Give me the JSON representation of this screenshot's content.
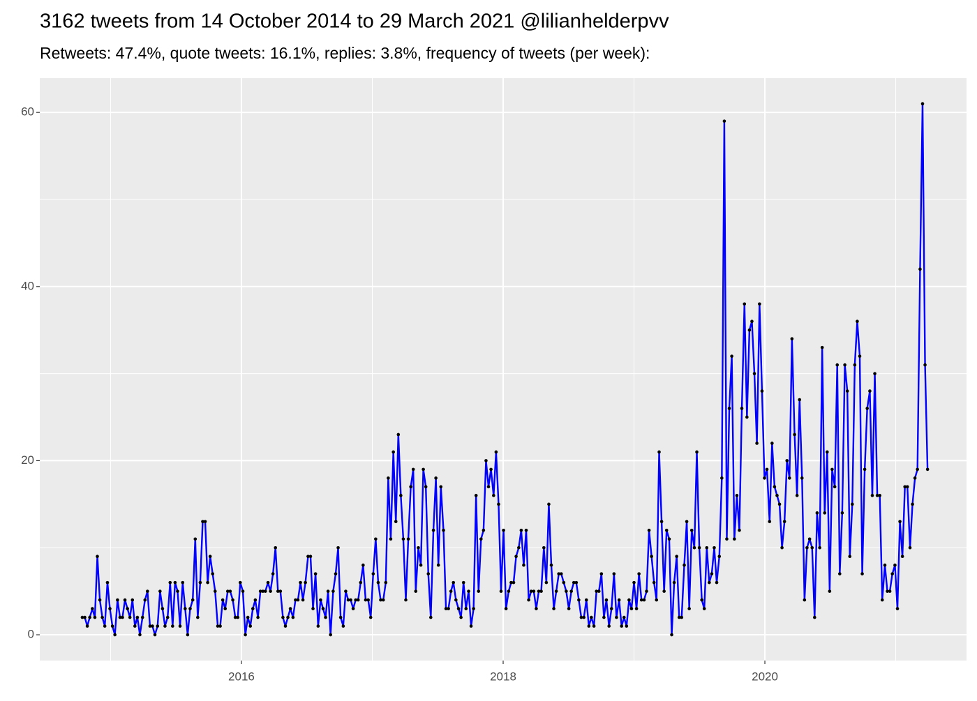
{
  "chart_data": {
    "type": "line",
    "title": "3162 tweets from 14 October 2014 to 29 March 2021 @lilianhelderpvv",
    "subtitle": "Retweets: 47.4%, quote tweets: 16.1%, replies: 3.8%, frequency of tweets (per week):",
    "x": [
      2014.784,
      2014.803,
      2014.822,
      2014.841,
      2014.861,
      2014.88,
      2014.899,
      2014.918,
      2014.937,
      2014.956,
      2014.976,
      2014.995,
      2015.014,
      2015.033,
      2015.053,
      2015.072,
      2015.091,
      2015.11,
      2015.129,
      2015.148,
      2015.167,
      2015.186,
      2015.205,
      2015.224,
      2015.244,
      2015.263,
      2015.282,
      2015.301,
      2015.32,
      2015.339,
      2015.359,
      2015.378,
      2015.397,
      2015.416,
      2015.436,
      2015.455,
      2015.474,
      2015.493,
      2015.512,
      2015.531,
      2015.551,
      2015.57,
      2015.589,
      2015.608,
      2015.628,
      2015.647,
      2015.666,
      2015.685,
      2015.704,
      2015.723,
      2015.742,
      2015.761,
      2015.78,
      2015.799,
      2015.819,
      2015.838,
      2015.857,
      2015.876,
      2015.895,
      2015.914,
      2015.934,
      2015.953,
      2015.972,
      2015.991,
      2016.011,
      2016.03,
      2016.049,
      2016.068,
      2016.087,
      2016.106,
      2016.126,
      2016.145,
      2016.164,
      2016.183,
      2016.203,
      2016.222,
      2016.241,
      2016.26,
      2016.279,
      2016.298,
      2016.317,
      2016.336,
      2016.355,
      2016.374,
      2016.394,
      2016.413,
      2016.432,
      2016.451,
      2016.47,
      2016.489,
      2016.509,
      2016.528,
      2016.547,
      2016.566,
      2016.586,
      2016.605,
      2016.624,
      2016.643,
      2016.662,
      2016.681,
      2016.701,
      2016.72,
      2016.739,
      2016.758,
      2016.778,
      2016.797,
      2016.816,
      2016.835,
      2016.854,
      2016.873,
      2016.892,
      2016.911,
      2016.93,
      2016.949,
      2016.969,
      2016.988,
      2017.007,
      2017.026,
      2017.045,
      2017.064,
      2017.084,
      2017.103,
      2017.122,
      2017.141,
      2017.161,
      2017.18,
      2017.199,
      2017.218,
      2017.237,
      2017.256,
      2017.275,
      2017.294,
      2017.313,
      2017.332,
      2017.352,
      2017.371,
      2017.39,
      2017.409,
      2017.428,
      2017.447,
      2017.467,
      2017.486,
      2017.505,
      2017.524,
      2017.544,
      2017.563,
      2017.582,
      2017.601,
      2017.62,
      2017.639,
      2017.659,
      2017.678,
      2017.697,
      2017.716,
      2017.736,
      2017.755,
      2017.774,
      2017.793,
      2017.812,
      2017.831,
      2017.85,
      2017.869,
      2017.888,
      2017.907,
      2017.927,
      2017.946,
      2017.965,
      2017.984,
      2018.003,
      2018.022,
      2018.042,
      2018.061,
      2018.08,
      2018.099,
      2018.119,
      2018.138,
      2018.157,
      2018.176,
      2018.195,
      2018.214,
      2018.234,
      2018.253,
      2018.272,
      2018.291,
      2018.311,
      2018.33,
      2018.349,
      2018.368,
      2018.387,
      2018.406,
      2018.425,
      2018.444,
      2018.463,
      2018.482,
      2018.502,
      2018.521,
      2018.54,
      2018.559,
      2018.578,
      2018.597,
      2018.617,
      2018.636,
      2018.655,
      2018.674,
      2018.694,
      2018.713,
      2018.732,
      2018.751,
      2018.77,
      2018.789,
      2018.809,
      2018.828,
      2018.847,
      2018.866,
      2018.886,
      2018.905,
      2018.924,
      2018.943,
      2018.962,
      2018.981,
      2019.0,
      2019.019,
      2019.038,
      2019.057,
      2019.077,
      2019.096,
      2019.115,
      2019.134,
      2019.153,
      2019.172,
      2019.192,
      2019.211,
      2019.23,
      2019.249,
      2019.269,
      2019.288,
      2019.307,
      2019.326,
      2019.345,
      2019.364,
      2019.384,
      2019.403,
      2019.422,
      2019.441,
      2019.461,
      2019.48,
      2019.499,
      2019.518,
      2019.537,
      2019.556,
      2019.575,
      2019.594,
      2019.613,
      2019.632,
      2019.652,
      2019.671,
      2019.69,
      2019.709,
      2019.728,
      2019.747,
      2019.767,
      2019.786,
      2019.805,
      2019.824,
      2019.844,
      2019.863,
      2019.882,
      2019.901,
      2019.92,
      2019.939,
      2019.959,
      2019.978,
      2019.997,
      2020.016,
      2020.036,
      2020.055,
      2020.074,
      2020.093,
      2020.112,
      2020.131,
      2020.15,
      2020.169,
      2020.188,
      2020.207,
      2020.227,
      2020.246,
      2020.265,
      2020.284,
      2020.303,
      2020.322,
      2020.342,
      2020.361,
      2020.38,
      2020.399,
      2020.419,
      2020.438,
      2020.457,
      2020.476,
      2020.495,
      2020.514,
      2020.534,
      2020.553,
      2020.572,
      2020.591,
      2020.611,
      2020.63,
      2020.649,
      2020.668,
      2020.687,
      2020.706,
      2020.725,
      2020.744,
      2020.763,
      2020.782,
      2020.802,
      2020.821,
      2020.84,
      2020.859,
      2020.878,
      2020.897,
      2020.917,
      2020.936,
      2020.955,
      2020.974,
      2020.994,
      2021.013,
      2021.032,
      2021.051,
      2021.07,
      2021.089,
      2021.109,
      2021.128,
      2021.147,
      2021.166,
      2021.186,
      2021.205,
      2021.224,
      2021.243
    ],
    "values": [
      2,
      2,
      1,
      2,
      3,
      2,
      9,
      4,
      2,
      1,
      6,
      3,
      1,
      0,
      4,
      2,
      2,
      4,
      3,
      2,
      4,
      1,
      2,
      0,
      2,
      4,
      5,
      1,
      1,
      0,
      1,
      5,
      3,
      1,
      2,
      6,
      1,
      6,
      5,
      1,
      6,
      3,
      0,
      3,
      4,
      11,
      2,
      6,
      13,
      13,
      6,
      9,
      7,
      5,
      1,
      1,
      4,
      3,
      5,
      5,
      4,
      2,
      2,
      6,
      5,
      0,
      2,
      1,
      3,
      4,
      2,
      5,
      5,
      5,
      6,
      5,
      7,
      10,
      5,
      5,
      2,
      1,
      2,
      3,
      2,
      4,
      4,
      6,
      4,
      6,
      9,
      9,
      3,
      7,
      1,
      4,
      3,
      2,
      5,
      0,
      5,
      7,
      10,
      2,
      1,
      5,
      4,
      4,
      3,
      4,
      4,
      6,
      8,
      4,
      4,
      2,
      7,
      11,
      6,
      4,
      4,
      6,
      18,
      11,
      21,
      13,
      23,
      16,
      11,
      4,
      11,
      17,
      19,
      5,
      10,
      8,
      19,
      17,
      7,
      2,
      12,
      18,
      8,
      17,
      12,
      3,
      3,
      5,
      6,
      4,
      3,
      2,
      6,
      3,
      5,
      1,
      3,
      16,
      5,
      11,
      12,
      20,
      17,
      19,
      16,
      21,
      15,
      5,
      12,
      3,
      5,
      6,
      6,
      9,
      10,
      12,
      8,
      12,
      4,
      5,
      5,
      3,
      5,
      5,
      10,
      6,
      15,
      8,
      3,
      5,
      7,
      7,
      6,
      5,
      3,
      5,
      6,
      6,
      4,
      2,
      2,
      4,
      1,
      2,
      1,
      5,
      5,
      7,
      2,
      4,
      1,
      3,
      7,
      2,
      4,
      1,
      2,
      1,
      4,
      3,
      6,
      3,
      7,
      4,
      4,
      5,
      12,
      9,
      6,
      4,
      21,
      13,
      5,
      12,
      11,
      0,
      6,
      9,
      2,
      2,
      8,
      13,
      3,
      12,
      10,
      21,
      10,
      4,
      3,
      10,
      6,
      7,
      10,
      6,
      9,
      18,
      59,
      11,
      26,
      32,
      11,
      16,
      12,
      26,
      38,
      25,
      35,
      36,
      30,
      22,
      38,
      28,
      18,
      19,
      13,
      22,
      17,
      16,
      15,
      10,
      13,
      20,
      18,
      34,
      23,
      16,
      27,
      18,
      4,
      10,
      11,
      10,
      2,
      14,
      10,
      33,
      14,
      21,
      5,
      19,
      17,
      31,
      7,
      14,
      31,
      28,
      9,
      15,
      31,
      36,
      32,
      7,
      19,
      26,
      28,
      16,
      30,
      16,
      16,
      4,
      8,
      5,
      5,
      7,
      8,
      3,
      13,
      9,
      17,
      17,
      10,
      15,
      18,
      19,
      42,
      61,
      31,
      19
    ],
    "color": "#0000ff",
    "point_color": "#000000",
    "background": "#ebebeb",
    "grid": true,
    "xlim": [
      2014.459,
      2021.541
    ],
    "xticks": [
      2016,
      2018,
      2020
    ],
    "xminor_ticks": [
      2015,
      2017,
      2019,
      2021
    ],
    "ylim": [
      -2.96,
      63.94
    ],
    "yticks": [
      0,
      20,
      40,
      60
    ],
    "yminor_ticks": [
      10,
      30,
      50
    ]
  }
}
